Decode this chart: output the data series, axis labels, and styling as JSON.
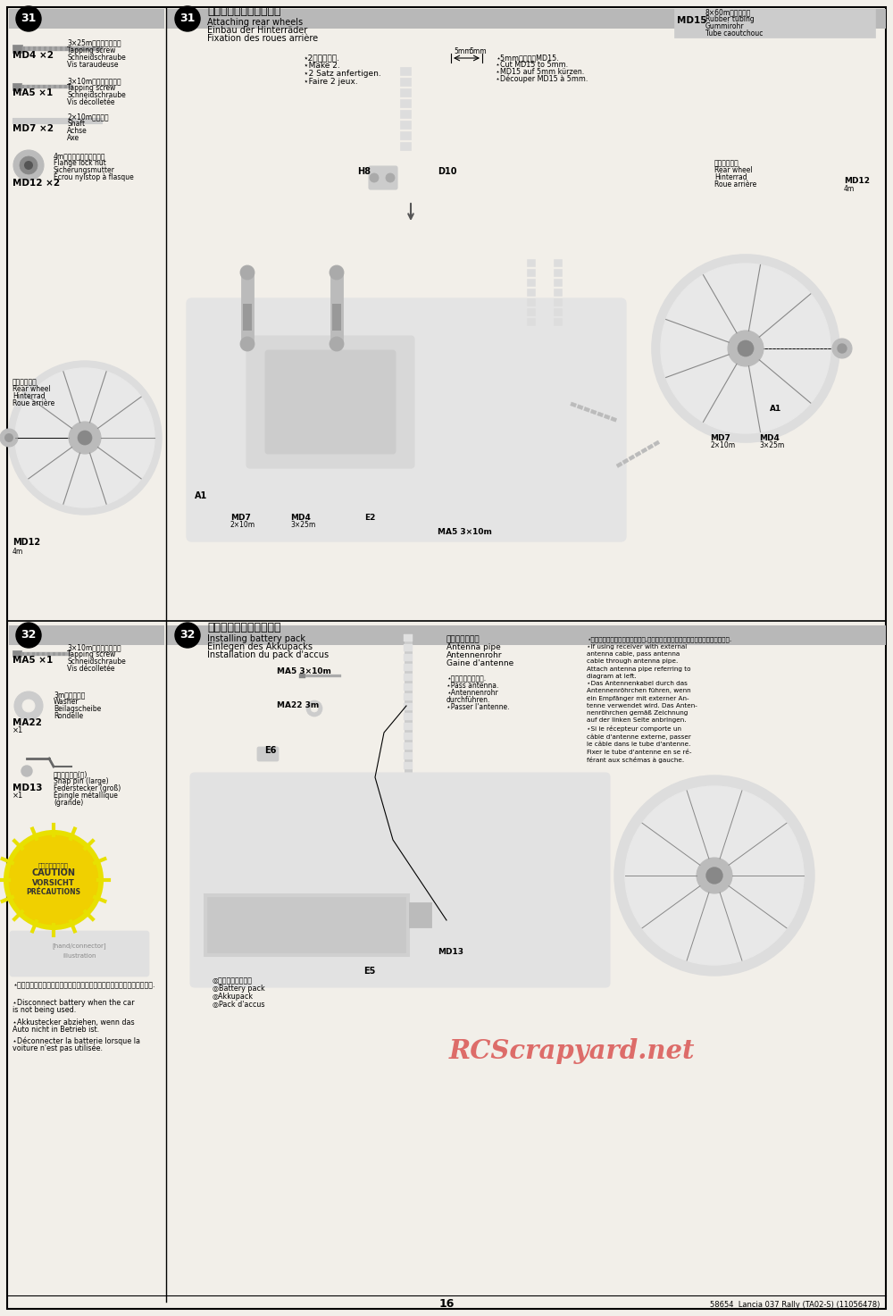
{
  "page_num": "16",
  "footer_text": "58654  Lancia 037 Rally (TA02-S) (11056478)",
  "watermark": "RCScrapyard.net",
  "bg_color": "#f2efe9",
  "section31_title_jp": "リヤホイールの取り付け",
  "section31_title_en": "Attaching rear wheels",
  "section31_title_de": "Einbau der Hinterräder",
  "section31_title_fr": "Fixation des roues arrière",
  "section31_note_jp": "⋆2回作ります.",
  "section31_note_en": "⋆Make 2.",
  "section31_note_de": "⋆2 Satz anfertigen.",
  "section31_note_fr": "⋆Faire 2 jeux.",
  "section31_md15_notes": [
    "⋆5mmに切ったMD15.",
    "⋆Cut MD15 to 5mm.",
    "⋆MD15 auf 5mm kürzen.",
    "⋆Découper MD15 à 5mm."
  ],
  "section32_title_jp": "走行用バッテリーの搭載",
  "section32_title_en": "Installing battery pack",
  "section32_title_de": "Einlegen des Akkupacks",
  "section32_title_fr": "Installation du pack d'accus",
  "section32_antenna_jp": "アンテナパイプ",
  "section32_antenna_en": "Antenna pipe",
  "section32_antenna_de": "Antennenrohr",
  "section32_antenna_fr": "Gaine d'antenne",
  "section32_pass_jp": "⋆アンテナ線を通す.",
  "section32_pass_en": "⋆Pass antenna.",
  "section32_pass_de": "⋆Antennenrohr",
  "section32_pass_de2": "durchführen.",
  "section32_pass_fr": "⋆Passer l'antenne.",
  "section32_battery_jp": "◎走行用バッテリー",
  "section32_battery_en": "◎Battery pack",
  "section32_battery_de": "◎Akkupack",
  "section32_battery_fr": "◎Pack d'accus",
  "section32_caution": "注意してください\nCAUTION\nVORSICHT\nPRÉCAUTIONS",
  "section32_warn_jp": "⋆走行させない時は必ず走行用バッテリーのコネクターを外してください.",
  "section32_warn_en1": "⋆Disconnect battery when the car",
  "section32_warn_en2": "is not being used.",
  "section32_warn_de1": "⋆Akkustecker abziehen, wenn das",
  "section32_warn_de2": "Auto nicht in Betrieb ist.",
  "section32_warn_fr1": "⋆Déconnecter la batterie lorsque la",
  "section32_warn_fr2": "voiture n'est pas utilisée.",
  "section32_right_text": "⋆受信機アンテナ線がある場合は,図を参考にアンテナパイプを利用してください.\n⋆If using receiver with external\nantenna cable, pass antenna\ncable through antenna pipe.\nAttach antenna pipe referring to\ndiagram at left.\n⋆Das Antennenkabel durch das\nAntennenröhrchen führen, wenn\nein Empfänger mit externer An-\ntenne verwendet wird. Das Anten-\nnenröhrchen gemäß Zeichnung\nauf der linken Seite anbringen.\n⋆Si le récepteur comporte un\ncâble d'antenne externe, passer\nle câble dans le tube d'antenne.\nFixer le tube d'antenne en se ré-\nférant aux schémas à gauche."
}
